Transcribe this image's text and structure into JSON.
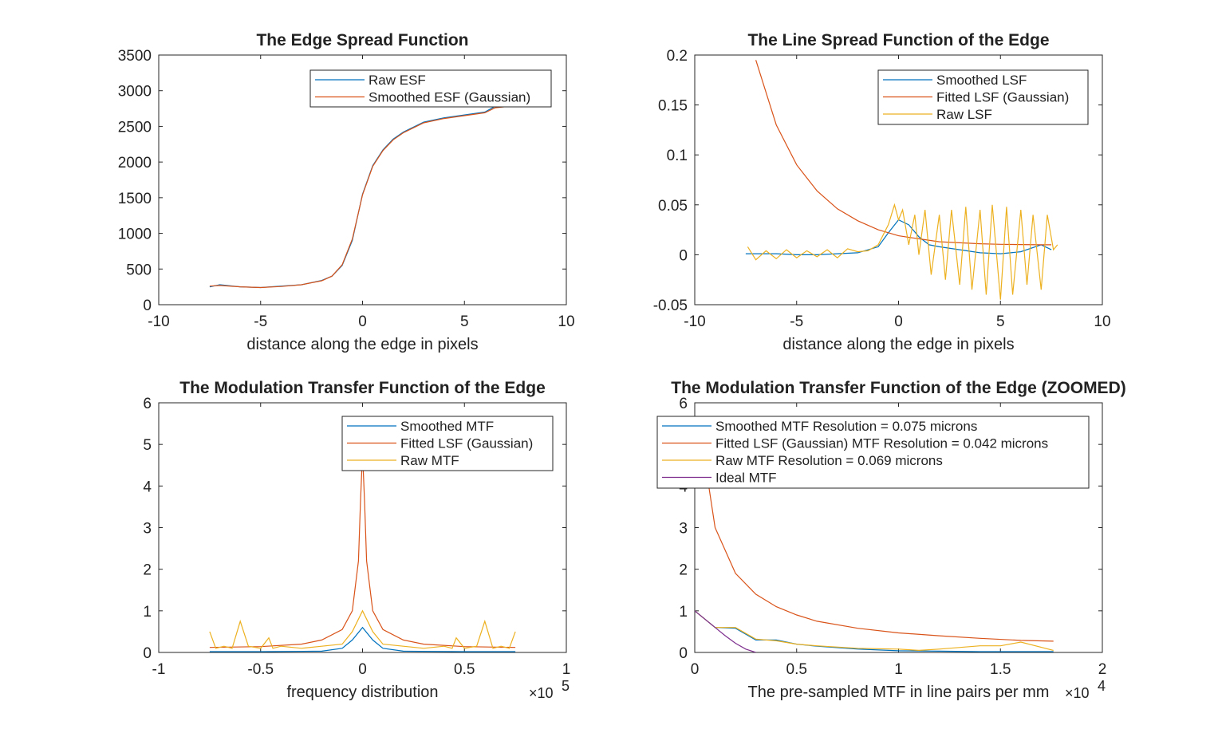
{
  "colors": {
    "blue": "#0072BD",
    "orange": "#D95319",
    "yellow": "#EDB120",
    "purple": "#7E2F8E"
  },
  "chart_data": [
    {
      "type": "line",
      "title": "The  Edge  Spread  Function",
      "xlabel": "distance along the edge in pixels",
      "xlim": [
        -10,
        10
      ],
      "ylim": [
        0,
        3500
      ],
      "xticks": [
        -10,
        -5,
        0,
        5,
        10
      ],
      "yticks": [
        0,
        500,
        1000,
        1500,
        2000,
        2500,
        3000,
        3500
      ],
      "legend_position": "top-right",
      "series": [
        {
          "name": "Raw ESF",
          "color": "#0072BD",
          "x": [
            -7.5,
            -7,
            -6,
            -5,
            -4,
            -3,
            -2,
            -1.5,
            -1,
            -0.5,
            0,
            0.5,
            1,
            1.5,
            2,
            3,
            4,
            5,
            6,
            6.5,
            7.5
          ],
          "y": [
            250,
            280,
            250,
            240,
            260,
            280,
            340,
            400,
            550,
            900,
            1550,
            1950,
            2170,
            2320,
            2420,
            2560,
            2620,
            2660,
            2700,
            2780,
            2800
          ]
        },
        {
          "name": "Smoothed ESF (Gaussian)",
          "color": "#D95319",
          "x": [
            -7.5,
            -7,
            -6,
            -5,
            -4,
            -3,
            -2,
            -1.5,
            -1,
            -0.5,
            0,
            0.5,
            1,
            1.5,
            2,
            3,
            4,
            5,
            6,
            6.5,
            7.5
          ],
          "y": [
            260,
            270,
            250,
            240,
            255,
            280,
            335,
            400,
            560,
            920,
            1540,
            1940,
            2160,
            2310,
            2410,
            2550,
            2610,
            2650,
            2690,
            2760,
            2790
          ]
        }
      ]
    },
    {
      "type": "line",
      "title": "The  Line  Spread  Function  of  the  Edge",
      "xlabel": "distance along the edge in pixels",
      "xlim": [
        -10,
        10
      ],
      "ylim": [
        -0.05,
        0.2
      ],
      "xticks": [
        -10,
        -5,
        0,
        5,
        10
      ],
      "yticks": [
        -0.05,
        0,
        0.05,
        0.1,
        0.15,
        0.2
      ],
      "legend_position": "top-right",
      "series": [
        {
          "name": "Smoothed LSF",
          "color": "#0072BD",
          "x": [
            -7.5,
            -6,
            -5,
            -4,
            -3,
            -2,
            -1,
            -0.5,
            0,
            0.5,
            1,
            1.5,
            2,
            3,
            4,
            5,
            6,
            7,
            7.5
          ],
          "y": [
            0.001,
            0.001,
            0,
            0,
            0.001,
            0.002,
            0.008,
            0.022,
            0.035,
            0.03,
            0.018,
            0.01,
            0.008,
            0.005,
            0.002,
            0.001,
            0.003,
            0.01,
            0.005
          ]
        },
        {
          "name": "Fitted LSF (Gaussian)",
          "color": "#D95319",
          "x": [
            -7,
            -6,
            -5,
            -4,
            -3,
            -2,
            -1,
            0,
            1,
            2,
            3,
            4,
            5,
            6,
            7,
            7.5
          ],
          "y": [
            0.195,
            0.13,
            0.09,
            0.064,
            0.046,
            0.034,
            0.025,
            0.019,
            0.016,
            0.013,
            0.012,
            0.011,
            0.0105,
            0.0102,
            0.01,
            0.01
          ]
        },
        {
          "name": "Raw LSF",
          "color": "#EDB120",
          "x": [
            -7.4,
            -7,
            -6.5,
            -6,
            -5.5,
            -5,
            -4.5,
            -4,
            -3.5,
            -3,
            -2.5,
            -2,
            -1.5,
            -1,
            -0.5,
            -0.2,
            0,
            0.2,
            0.5,
            0.8,
            1,
            1.3,
            1.6,
            2,
            2.3,
            2.6,
            3,
            3.3,
            3.6,
            4,
            4.3,
            4.6,
            5,
            5.3,
            5.6,
            6,
            6.3,
            6.6,
            7,
            7.3,
            7.6,
            7.8
          ],
          "y": [
            0.008,
            -0.005,
            0.004,
            -0.004,
            0.005,
            -0.003,
            0.004,
            -0.002,
            0.005,
            -0.003,
            0.006,
            0.003,
            0.004,
            0.01,
            0.03,
            0.05,
            0.035,
            0.045,
            0.01,
            0.04,
            0.0,
            0.045,
            -0.02,
            0.04,
            -0.025,
            0.045,
            -0.03,
            0.048,
            -0.035,
            0.045,
            -0.04,
            0.05,
            -0.045,
            0.048,
            -0.04,
            0.045,
            -0.03,
            0.04,
            -0.035,
            0.04,
            0.005,
            0.01
          ]
        }
      ]
    },
    {
      "type": "line",
      "title": "The  Modulation  Transfer  Function  of  the  Edge",
      "xlabel": "frequency distribution",
      "x_multiplier": "×10",
      "x_multiplier_exp": "5",
      "xlim": [
        -1,
        1
      ],
      "ylim": [
        0,
        6
      ],
      "xticks": [
        -1,
        -0.5,
        0,
        0.5,
        1
      ],
      "yticks": [
        0,
        1,
        2,
        3,
        4,
        5,
        6
      ],
      "legend_position": "top-right",
      "series": [
        {
          "name": "Smoothed MTF",
          "color": "#0072BD",
          "x": [
            -0.75,
            -0.5,
            -0.2,
            -0.1,
            -0.05,
            0,
            0.05,
            0.1,
            0.2,
            0.5,
            0.75
          ],
          "y": [
            0.02,
            0.02,
            0.03,
            0.1,
            0.3,
            0.6,
            0.3,
            0.1,
            0.03,
            0.02,
            0.02
          ]
        },
        {
          "name": "Fitted LSF (Gaussian)",
          "color": "#D95319",
          "x": [
            -0.75,
            -0.5,
            -0.3,
            -0.2,
            -0.1,
            -0.05,
            -0.02,
            -0.01,
            0,
            0.01,
            0.02,
            0.05,
            0.1,
            0.2,
            0.3,
            0.5,
            0.75
          ],
          "y": [
            0.12,
            0.14,
            0.2,
            0.3,
            0.55,
            1.0,
            2.2,
            3.6,
            4.8,
            3.6,
            2.2,
            1.0,
            0.55,
            0.3,
            0.2,
            0.14,
            0.12
          ]
        },
        {
          "name": "Raw MTF",
          "color": "#EDB120",
          "x": [
            -0.75,
            -0.72,
            -0.68,
            -0.64,
            -0.6,
            -0.56,
            -0.5,
            -0.46,
            -0.44,
            -0.4,
            -0.3,
            -0.2,
            -0.1,
            -0.05,
            0,
            0.05,
            0.1,
            0.2,
            0.3,
            0.4,
            0.44,
            0.46,
            0.5,
            0.56,
            0.6,
            0.64,
            0.68,
            0.72,
            0.75
          ],
          "y": [
            0.5,
            0.1,
            0.15,
            0.1,
            0.75,
            0.15,
            0.1,
            0.35,
            0.1,
            0.15,
            0.1,
            0.15,
            0.2,
            0.5,
            1.0,
            0.5,
            0.2,
            0.15,
            0.1,
            0.15,
            0.1,
            0.35,
            0.1,
            0.15,
            0.75,
            0.1,
            0.15,
            0.1,
            0.5
          ]
        }
      ]
    },
    {
      "type": "line",
      "title": "The  Modulation  Transfer  Function  of  the  Edge  (ZOOMED)",
      "xlabel": "The pre-sampled MTF in line pairs per mm",
      "x_multiplier": "×10",
      "x_multiplier_exp": "4",
      "xlim": [
        0,
        2
      ],
      "ylim": [
        0,
        6
      ],
      "xticks": [
        0,
        0.5,
        1,
        1.5,
        2
      ],
      "yticks": [
        0,
        1,
        2,
        3,
        4,
        5,
        6
      ],
      "legend_position": "top-left",
      "series": [
        {
          "name": "Smoothed MTF Resolution = 0.075 microns",
          "color": "#0072BD",
          "x": [
            0,
            0.1,
            0.2,
            0.3,
            0.4,
            0.5,
            0.6,
            0.8,
            1.0,
            1.2,
            1.4,
            1.6,
            1.76
          ],
          "y": [
            1.0,
            0.6,
            0.58,
            0.3,
            0.3,
            0.2,
            0.15,
            0.08,
            0.04,
            0.03,
            0.02,
            0.02,
            0.02
          ]
        },
        {
          "name": "Fitted LSF (Gaussian) MTF Resolution = 0.042 microns",
          "color": "#D95319",
          "x": [
            0.05,
            0.1,
            0.2,
            0.3,
            0.4,
            0.5,
            0.6,
            0.8,
            1.0,
            1.2,
            1.4,
            1.6,
            1.76
          ],
          "y": [
            4.6,
            3.0,
            1.9,
            1.4,
            1.1,
            0.9,
            0.75,
            0.58,
            0.47,
            0.4,
            0.34,
            0.29,
            0.27
          ]
        },
        {
          "name": "Raw MTF Resolution = 0.069 microns",
          "color": "#EDB120",
          "x": [
            0,
            0.1,
            0.2,
            0.3,
            0.4,
            0.5,
            0.6,
            0.8,
            1.0,
            1.1,
            1.2,
            1.4,
            1.5,
            1.6,
            1.76
          ],
          "y": [
            1.0,
            0.6,
            0.6,
            0.32,
            0.28,
            0.2,
            0.16,
            0.1,
            0.08,
            0.05,
            0.08,
            0.16,
            0.16,
            0.25,
            0.05
          ]
        },
        {
          "name": "Ideal MTF",
          "color": "#7E2F8E",
          "x": [
            0,
            0.05,
            0.1,
            0.15,
            0.2,
            0.25,
            0.3
          ],
          "y": [
            1.0,
            0.8,
            0.6,
            0.4,
            0.22,
            0.08,
            0.0
          ]
        }
      ]
    }
  ]
}
